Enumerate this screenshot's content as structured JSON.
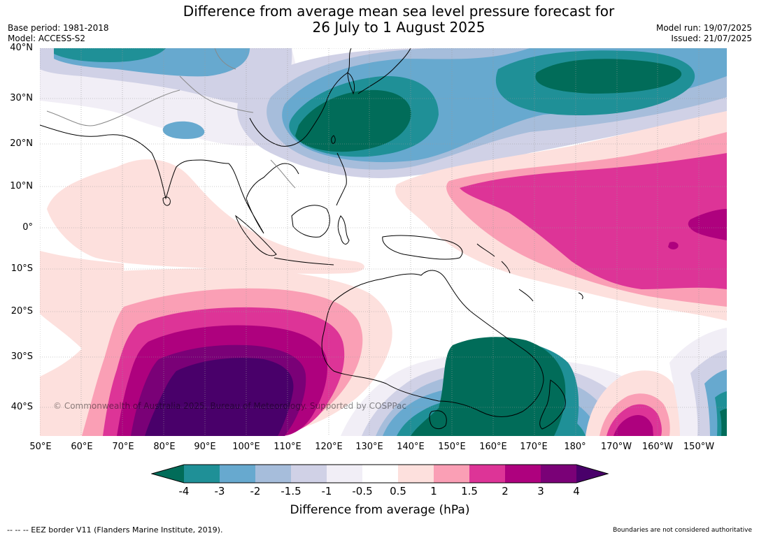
{
  "title": {
    "line1": "Difference from average mean sea level pressure forecast for",
    "line2": "26 July to 1 August 2025"
  },
  "meta": {
    "base_period": "Base period: 1981-2018",
    "model": "Model: ACCESS-S2",
    "model_run": "Model run: 19/07/2025",
    "issued": "Issued: 21/07/2025"
  },
  "latitude_labels": [
    "40°N",
    "30°N",
    "20°N",
    "10°N",
    "0°",
    "10°S",
    "20°S",
    "30°S",
    "40°S"
  ],
  "longitude_labels": [
    "50°E",
    "60°E",
    "70°E",
    "80°E",
    "90°E",
    "100°E",
    "110°E",
    "120°E",
    "130°E",
    "140°E",
    "150°E",
    "160°E",
    "170°E",
    "180°",
    "170°W",
    "160°W",
    "150°W"
  ],
  "map_extent": {
    "lon_min_e": 50,
    "lon_max_e": 217,
    "lat_min": -47,
    "lat_max": 40
  },
  "copyright": "© Commonwealth of Australia 2025, Bureau of Meteorology. Supported by COSPPac",
  "colorbar": {
    "title": "Difference from average (hPa)",
    "tick_labels": [
      "-4",
      "-3",
      "-2",
      "-1.5",
      "-1",
      "-0.5",
      "0.5",
      "1",
      "1.5",
      "2",
      "3",
      "4"
    ],
    "colors": [
      "#016c59",
      "#1f9097",
      "#67a9cf",
      "#a6bddb",
      "#d0d1e6",
      "#f1eef6",
      "#ffffff",
      "#fde0dd",
      "#fa9fb5",
      "#dd3497",
      "#ae017e",
      "#7a0177",
      "#49006a"
    ]
  },
  "footer": {
    "eez_note": "--  --  -- EEZ border V11 (Flanders Marine Institute, 2019).",
    "boundary_note": "Boundaries are not considered authoritative"
  }
}
